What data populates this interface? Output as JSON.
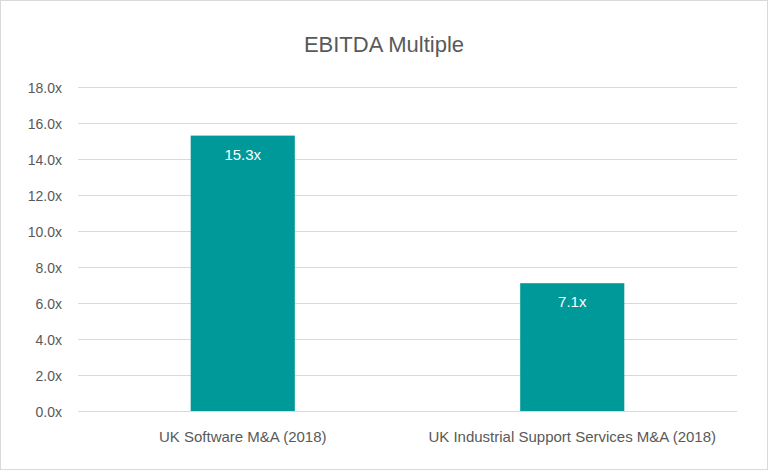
{
  "chart_data": {
    "type": "bar",
    "title": "EBITDA Multiple",
    "categories": [
      "UK Software M&A (2018)",
      "UK Industrial Support Services M&A (2018)"
    ],
    "values": [
      15.3,
      7.1
    ],
    "value_labels": [
      "15.3x",
      "7.1x"
    ],
    "color": "#009999",
    "ylim": [
      0,
      18
    ],
    "yticks": [
      {
        "value": 0,
        "label": "0.0x"
      },
      {
        "value": 2,
        "label": "2.0x"
      },
      {
        "value": 4,
        "label": "4.0x"
      },
      {
        "value": 6,
        "label": "6.0x"
      },
      {
        "value": 8,
        "label": "8.0x"
      },
      {
        "value": 10,
        "label": "10.0x"
      },
      {
        "value": 12,
        "label": "12.0x"
      },
      {
        "value": 14,
        "label": "14.0x"
      },
      {
        "value": 16,
        "label": "16.0x"
      },
      {
        "value": 18,
        "label": "18.0x"
      }
    ],
    "grid": true,
    "data_labels": true
  }
}
